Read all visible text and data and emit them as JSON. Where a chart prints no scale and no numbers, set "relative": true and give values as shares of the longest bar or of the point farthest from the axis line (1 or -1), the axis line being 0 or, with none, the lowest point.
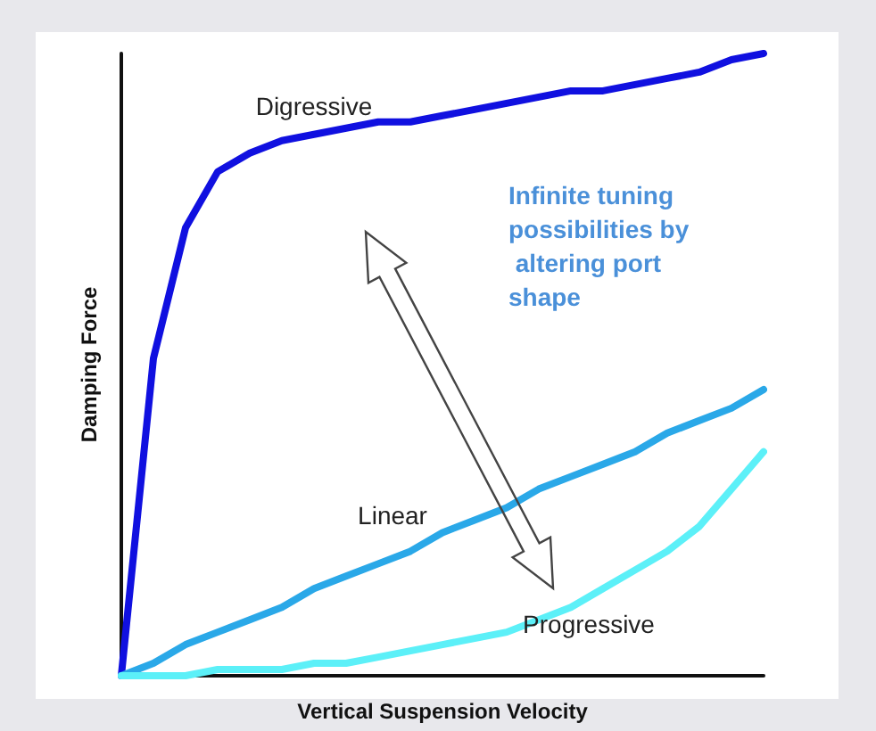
{
  "chart_data": {
    "type": "line",
    "relative": true,
    "xlabel": "Vertical Suspension Velocity",
    "ylabel": "Damping Force",
    "grid": false,
    "legend": false,
    "marker": "none",
    "line_style": "solid",
    "categories": [
      null,
      null,
      null,
      null,
      null,
      null,
      null,
      null,
      null,
      null,
      null,
      null,
      null,
      null,
      null,
      null,
      null,
      null,
      null,
      null,
      null
    ],
    "annotations": [
      "Infinite tuning possibilities by altering port shape"
    ],
    "series": [
      {
        "name": "Digressive",
        "color": "#1010e0",
        "values": [
          0,
          0.51,
          0.72,
          0.81,
          0.84,
          0.86,
          0.87,
          0.88,
          0.89,
          0.89,
          0.9,
          0.91,
          0.92,
          0.93,
          0.94,
          0.94,
          0.95,
          0.96,
          0.97,
          0.99,
          1
        ]
      },
      {
        "name": "Linear",
        "color": "#2aa8e8",
        "values": [
          0,
          0.02,
          0.05,
          0.07,
          0.09,
          0.11,
          0.14,
          0.16,
          0.18,
          0.2,
          0.23,
          0.25,
          0.27,
          0.3,
          0.32,
          0.34,
          0.36,
          0.39,
          0.41,
          0.43,
          0.46
        ]
      },
      {
        "name": "Progressive",
        "color": "#5cf0f8",
        "values": [
          0,
          0,
          0,
          0.01,
          0.01,
          0.01,
          0.02,
          0.02,
          0.03,
          0.04,
          0.05,
          0.06,
          0.07,
          0.09,
          0.11,
          0.14,
          0.17,
          0.2,
          0.24,
          0.3,
          0.36
        ]
      }
    ]
  }
}
